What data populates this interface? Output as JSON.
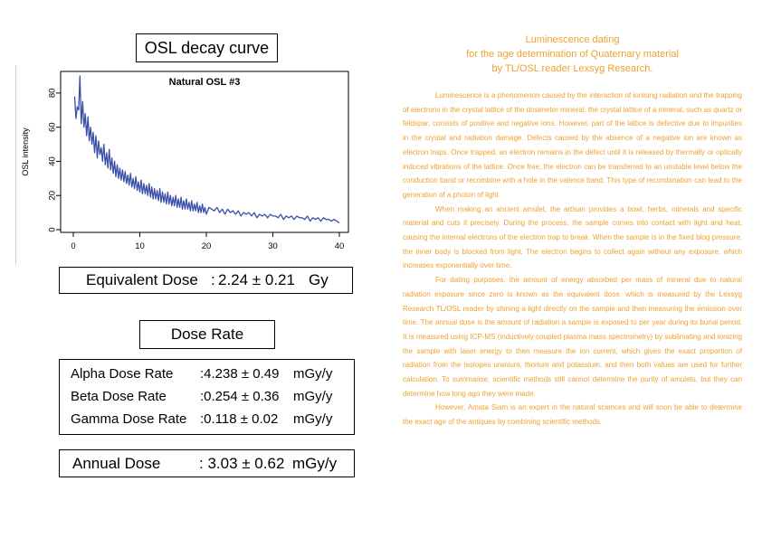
{
  "title": "OSL decay curve",
  "chart_data": {
    "type": "line",
    "title": "Natural OSL #3",
    "xlabel": "",
    "ylabel": "OSL intensity",
    "xlim": [
      0,
      40
    ],
    "ylim": [
      0,
      90
    ],
    "xticks": [
      0,
      10,
      20,
      30,
      40
    ],
    "yticks": [
      0,
      20,
      40,
      60,
      80
    ],
    "grid": false,
    "series": [
      {
        "color": "#3b4fa8",
        "x": [
          0.2,
          0.4,
          0.6,
          0.8,
          1.0,
          1.2,
          1.4,
          1.6,
          1.8,
          2.0,
          2.2,
          2.4,
          2.6,
          2.8,
          3.0,
          3.2,
          3.4,
          3.6,
          3.8,
          4.0,
          4.2,
          4.4,
          4.6,
          4.8,
          5.0,
          5.2,
          5.4,
          5.6,
          5.8,
          6.0,
          6.2,
          6.4,
          6.6,
          6.8,
          7.0,
          7.2,
          7.4,
          7.6,
          7.8,
          8.0,
          8.2,
          8.4,
          8.6,
          8.8,
          9.0,
          9.2,
          9.4,
          9.6,
          9.8,
          10.0,
          10.2,
          10.4,
          10.6,
          10.8,
          11.0,
          11.2,
          11.4,
          11.6,
          11.8,
          12.0,
          12.2,
          12.4,
          12.6,
          12.8,
          13.0,
          13.2,
          13.4,
          13.6,
          13.8,
          14.0,
          14.2,
          14.4,
          14.6,
          14.8,
          15.0,
          15.2,
          15.4,
          15.6,
          15.8,
          16.0,
          16.2,
          16.4,
          16.6,
          16.8,
          17.0,
          17.2,
          17.4,
          17.6,
          17.8,
          18.0,
          18.2,
          18.4,
          18.6,
          18.8,
          19.0,
          19.2,
          19.4,
          19.6,
          19.8,
          20.0,
          20.4,
          20.8,
          21.2,
          21.6,
          22.0,
          22.4,
          22.8,
          23.2,
          23.6,
          24.0,
          24.4,
          24.8,
          25.2,
          25.6,
          26.0,
          26.4,
          26.8,
          27.2,
          27.6,
          28.0,
          28.4,
          28.8,
          29.2,
          29.6,
          30.0,
          30.4,
          30.8,
          31.2,
          31.6,
          32.0,
          32.4,
          32.8,
          33.2,
          33.6,
          34.0,
          34.4,
          34.8,
          35.2,
          35.6,
          36.0,
          36.4,
          36.8,
          37.2,
          37.6,
          38.0,
          38.4,
          38.8,
          39.2,
          39.6,
          40.0
        ],
        "values": [
          78,
          65,
          72,
          70,
          90,
          62,
          75,
          60,
          68,
          55,
          66,
          52,
          60,
          50,
          57,
          45,
          55,
          42,
          52,
          44,
          48,
          40,
          50,
          38,
          45,
          36,
          47,
          35,
          42,
          33,
          40,
          31,
          38,
          30,
          36,
          29,
          35,
          28,
          34,
          27,
          32,
          26,
          33,
          25,
          30,
          24,
          31,
          23,
          28,
          22,
          29,
          21,
          27,
          21,
          26,
          20,
          27,
          19,
          25,
          18,
          24,
          18,
          23,
          17,
          24,
          16,
          22,
          16,
          21,
          15,
          22,
          15,
          20,
          14,
          19,
          14,
          20,
          13,
          18,
          13,
          19,
          12,
          17,
          12,
          18,
          12,
          16,
          11,
          17,
          11,
          15,
          11,
          16,
          10,
          14,
          10,
          15,
          10,
          13,
          9,
          13,
          12,
          11,
          13,
          10,
          12,
          9,
          12,
          10,
          11,
          9,
          11,
          8,
          10,
          9,
          10,
          8,
          10,
          7,
          9,
          8,
          9,
          7,
          9,
          8,
          8,
          7,
          9,
          6,
          8,
          7,
          8,
          6,
          8,
          7,
          7,
          6,
          8,
          5,
          7,
          6,
          7,
          5,
          7,
          6,
          6,
          5,
          6,
          5,
          4
        ]
      }
    ]
  },
  "equivalent_dose": {
    "label": "Equivalent Dose",
    "colon": ":",
    "value": "2.24 ± 0.21",
    "unit": "Gy"
  },
  "dose_rate": {
    "title": "Dose Rate",
    "rows": [
      {
        "label": "Alpha Dose Rate",
        "value": ":4.238 ± 0.49",
        "unit": "mGy/y"
      },
      {
        "label": "Beta Dose Rate",
        "value": ":0.254 ± 0.36",
        "unit": "mGy/y"
      },
      {
        "label": "Gamma Dose Rate",
        "value": ":0.118 ± 0.02",
        "unit": "mGy/y"
      }
    ]
  },
  "annual_dose": {
    "label": "Annual Dose",
    "value": ": 3.03 ± 0.62",
    "unit": "mGy/y"
  },
  "article": {
    "heading": [
      "Luminescence dating",
      "for the age determination of Quaternary material",
      "by TL/OSL reader Lexsyg Research."
    ],
    "paragraphs": [
      "Luminescence is a phenomenon caused by the interaction of ionising radiation and the trapping of electrons in the crystal lattice of the dosimeter mineral. the crystal lattice of a mineral, such as quartz or feldspar, consists of positive and negative ions. However, part of the lattice is defective due to impurities in the crystal and radiation damage. Defects caused by the absence of a negative ion are known as electron traps. Once trapped, an electron remains in the defect until it is released by thermally or optically induced vibrations of the lattice. Once free, the electron can be transferred to an unstable level below the conduction band or recombine with a hole in the valence band. This type of recombination can lead to the generation of a photon of light.",
      "When making an ancient amulet, the artisan provides a bowl, herbs, minerals and specific material and cuts it precisely. During the process, the sample comes into contact with light and heat, causing the internal electrons of the electron trap to break. When the sample is in the fixed blog pressure, the inner body is blocked from light. The electron begins to collect again without any exposure, which increases exponentially over time.",
      "For dating purposes, the amount of energy absorbed per mass of mineral due to natural radiation exposure since zero is known as the equivalent dose, which is measured by the Lexsyg Research TL/OSL reader by shining a light directly on the sample and then measuring the emission over time. The annual dose is the amount of radiation a sample is exposed to per year during its burial period. It is measured using ICP-MS (inductively coupled plasma mass spectrometry) by sublimating and ionizing the sample with laser energy to then measure the ion current, which gives the exact proportion of radiation from the isotopes uranium, thorium and potassium, and then both values are used for further calculation. To summarise, scientific methods still cannot determine the purity of amulets, but they can determine how long ago they were made.",
      "However, Amata Siam is an expert in the natural sciences and will soon be able to determine the exact age of the antiques by combining scientific methods."
    ]
  }
}
